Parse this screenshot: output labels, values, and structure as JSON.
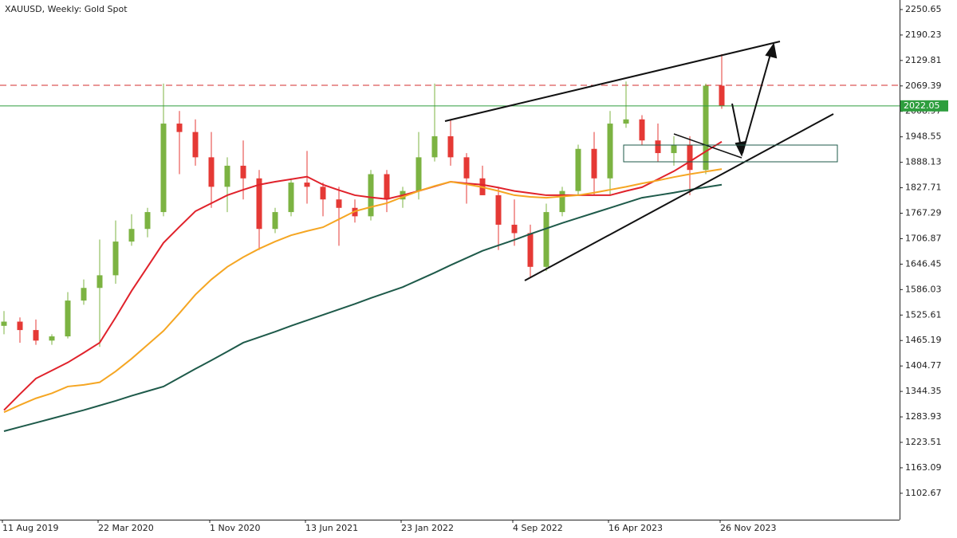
{
  "chart_data": {
    "type": "candlestick",
    "title": "XAUUSD, Weekly:  Gold Spot",
    "categories": [
      "11 Aug 2019",
      null,
      null,
      null,
      null,
      null,
      "22 Mar 2020",
      null,
      null,
      null,
      null,
      null,
      null,
      "1 Nov 2020",
      null,
      null,
      null,
      null,
      null,
      "13 Jun 2021",
      null,
      null,
      null,
      null,
      null,
      "23 Jan 2022",
      null,
      null,
      null,
      null,
      null,
      null,
      "4 Sep 2022",
      null,
      null,
      null,
      null,
      null,
      "16 Apr 2023",
      null,
      null,
      null,
      null,
      null,
      null,
      "26 Nov 2023"
    ],
    "open": [
      1500,
      1510,
      1490,
      1465,
      1475,
      1560,
      1590,
      1620,
      1700,
      1730,
      1770,
      1980,
      1960,
      1900,
      1830,
      1880,
      1850,
      1730,
      1770,
      1840,
      1830,
      1800,
      1780,
      1760,
      1860,
      1800,
      1820,
      1900,
      1950,
      1900,
      1850,
      1810,
      1740,
      1720,
      1640,
      1770,
      1820,
      1920,
      1850,
      1980,
      1990,
      1940,
      1910,
      1930,
      1870,
      2070
    ],
    "high": [
      1535,
      1520,
      1515,
      1480,
      1580,
      1610,
      1705,
      1750,
      1765,
      1780,
      2075,
      2010,
      1990,
      1960,
      1900,
      1940,
      1870,
      1780,
      1850,
      1915,
      1840,
      1830,
      1800,
      1870,
      1870,
      1830,
      1960,
      2075,
      1990,
      1910,
      1880,
      1830,
      1800,
      1740,
      1790,
      1830,
      1930,
      1960,
      2010,
      2080,
      2000,
      1980,
      1950,
      1950,
      2075,
      2145
    ],
    "low": [
      1480,
      1460,
      1455,
      1455,
      1470,
      1550,
      1450,
      1600,
      1690,
      1710,
      1760,
      1860,
      1880,
      1780,
      1770,
      1800,
      1680,
      1720,
      1760,
      1790,
      1760,
      1690,
      1745,
      1750,
      1770,
      1780,
      1800,
      1890,
      1880,
      1790,
      1810,
      1680,
      1690,
      1615,
      1630,
      1760,
      1810,
      1810,
      1810,
      1970,
      1930,
      1890,
      1880,
      1810,
      1860,
      2015
    ],
    "close": [
      1510,
      1490,
      1465,
      1475,
      1560,
      1590,
      1620,
      1700,
      1730,
      1770,
      1980,
      1960,
      1900,
      1830,
      1880,
      1850,
      1730,
      1770,
      1840,
      1830,
      1800,
      1780,
      1760,
      1860,
      1800,
      1820,
      1900,
      1950,
      1900,
      1850,
      1810,
      1740,
      1720,
      1640,
      1770,
      1820,
      1920,
      1850,
      1980,
      1990,
      1940,
      1910,
      1930,
      1870,
      2070,
      2022.05
    ],
    "up_color": "#7cb342",
    "down_color": "#e53935",
    "series": [
      {
        "color": "#e0222b",
        "values": [
          1300,
          1338,
          1375,
          1394,
          1413,
          1436,
          1460,
          1520,
          1583,
          1640,
          1697,
          1735,
          1772,
          1791,
          1810,
          1823,
          1835,
          1842,
          1848,
          1854,
          1835,
          1822,
          1810,
          1805,
          1801,
          1810,
          1820,
          1831,
          1842,
          1838,
          1835,
          1828,
          1820,
          1815,
          1810,
          1810,
          1810,
          1810,
          1810,
          1820,
          1829,
          1848,
          1867,
          1890,
          1914,
          1937
        ]
      },
      {
        "color": "#f5a623",
        "values": [
          1295,
          1312,
          1328,
          1340,
          1356,
          1360,
          1366,
          1392,
          1422,
          1455,
          1488,
          1530,
          1574,
          1610,
          1640,
          1663,
          1683,
          1700,
          1715,
          1725,
          1734,
          1753,
          1772,
          1782,
          1791,
          1806,
          1820,
          1832,
          1842,
          1836,
          1829,
          1820,
          1810,
          1806,
          1804,
          1807,
          1810,
          1816,
          1823,
          1830,
          1838,
          1845,
          1853,
          1860,
          1866,
          1872
        ]
      },
      {
        "color": "#1e5a4a",
        "values": [
          1250,
          1260,
          1270,
          1280,
          1290,
          1300,
          1311,
          1322,
          1334,
          1345,
          1356,
          1377,
          1398,
          1418,
          1439,
          1460,
          1473,
          1486,
          1500,
          1513,
          1526,
          1539,
          1552,
          1566,
          1579,
          1592,
          1609,
          1626,
          1644,
          1661,
          1678,
          1691,
          1704,
          1718,
          1731,
          1744,
          1756,
          1768,
          1780,
          1792,
          1804,
          1810,
          1816,
          1823,
          1829,
          1835
        ]
      }
    ],
    "resistance_level": 2071,
    "ylim": [
      1040,
      2273.3
    ],
    "yticks": [
      1102.67,
      1163.09,
      1223.51,
      1283.93,
      1344.35,
      1404.77,
      1465.19,
      1525.61,
      1586.03,
      1646.45,
      1706.87,
      1767.29,
      1827.71,
      1888.13,
      1948.55,
      2008.97,
      2069.39,
      2129.81,
      2190.23,
      2250.65
    ]
  }
}
